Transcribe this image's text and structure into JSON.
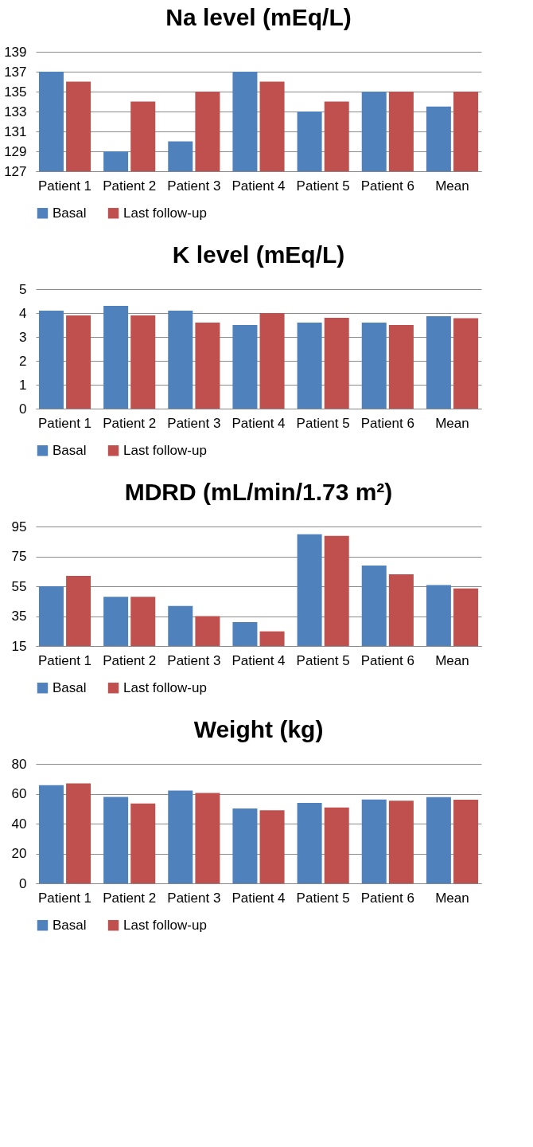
{
  "chart_data": [
    {
      "type": "bar",
      "title": "Na level (mEq/L)",
      "categories": [
        "Patient 1",
        "Patient 2",
        "Patient 3",
        "Patient 4",
        "Patient 5",
        "Patient 6",
        "Mean"
      ],
      "series": [
        {
          "name": "Basal",
          "color": "#4f81bd",
          "values": [
            137,
            129,
            130,
            137,
            133,
            135,
            133.5
          ]
        },
        {
          "name": "Last follow-up",
          "color": "#c0504d",
          "values": [
            136,
            134,
            135,
            136,
            134,
            135,
            135
          ]
        }
      ],
      "ylim": [
        127,
        139
      ],
      "yticks": [
        127,
        129,
        131,
        133,
        135,
        137,
        139
      ],
      "grid": "y",
      "legend": "bottom"
    },
    {
      "type": "bar",
      "title": "K level (mEq/L)",
      "categories": [
        "Patient 1",
        "Patient 2",
        "Patient 3",
        "Patient 4",
        "Patient 5",
        "Patient 6",
        "Mean"
      ],
      "series": [
        {
          "name": "Basal",
          "color": "#4f81bd",
          "values": [
            4.1,
            4.3,
            4.1,
            3.5,
            3.6,
            3.6,
            3.87
          ]
        },
        {
          "name": "Last follow-up",
          "color": "#c0504d",
          "values": [
            3.9,
            3.9,
            3.6,
            4.0,
            3.8,
            3.5,
            3.78
          ]
        }
      ],
      "ylim": [
        0,
        5
      ],
      "yticks": [
        0,
        1,
        2,
        3,
        4,
        5
      ],
      "grid": "y",
      "legend": "bottom"
    },
    {
      "type": "bar",
      "title": "MDRD (mL/min/1.73 m²)",
      "categories": [
        "Patient 1",
        "Patient 2",
        "Patient 3",
        "Patient 4",
        "Patient 5",
        "Patient 6",
        "Mean"
      ],
      "series": [
        {
          "name": "Basal",
          "color": "#4f81bd",
          "values": [
            55,
            48,
            41.8,
            31,
            89.8,
            68.9,
            55.8
          ]
        },
        {
          "name": "Last follow-up",
          "color": "#c0504d",
          "values": [
            62,
            48,
            35,
            24.8,
            88.8,
            63,
            53.5
          ]
        }
      ],
      "ylim": [
        15,
        95
      ],
      "yticks": [
        15,
        35,
        55,
        75,
        95
      ],
      "grid": "y",
      "legend": "bottom"
    },
    {
      "type": "bar",
      "title": "Weight (kg)",
      "categories": [
        "Patient 1",
        "Patient 2",
        "Patient 3",
        "Patient 4",
        "Patient 5",
        "Patient 6",
        "Mean"
      ],
      "series": [
        {
          "name": "Basal",
          "color": "#4f81bd",
          "values": [
            65.8,
            57.9,
            62.1,
            50.2,
            53.9,
            56.2,
            57.7
          ]
        },
        {
          "name": "Last follow-up",
          "color": "#c0504d",
          "values": [
            66.9,
            53.5,
            60.6,
            48.9,
            50.8,
            55.4,
            56
          ]
        }
      ],
      "ylim": [
        0,
        80
      ],
      "yticks": [
        0,
        20,
        40,
        60,
        80
      ],
      "grid": "y",
      "legend": "bottom"
    }
  ]
}
